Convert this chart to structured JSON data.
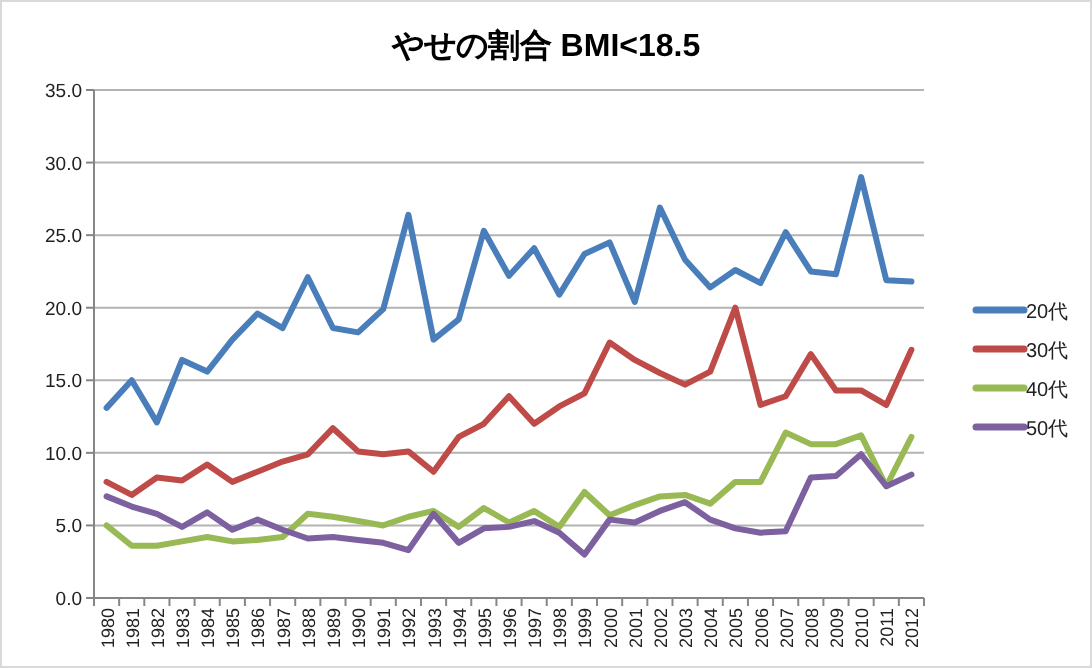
{
  "chart_data": {
    "type": "line",
    "title": "やせの割合 BMI<18.5",
    "categories": [
      "1980",
      "1981",
      "1982",
      "1983",
      "1984",
      "1985",
      "1986",
      "1987",
      "1988",
      "1989",
      "1990",
      "1991",
      "1992",
      "1993",
      "1994",
      "1995",
      "1996",
      "1997",
      "1998",
      "1999",
      "2000",
      "2001",
      "2002",
      "2003",
      "2004",
      "2005",
      "2006",
      "2007",
      "2008",
      "2009",
      "2010",
      "2011",
      "2012"
    ],
    "series": [
      {
        "name": "20代",
        "color": "#4a7ebb",
        "values": [
          13.1,
          15.0,
          12.1,
          16.4,
          15.6,
          17.8,
          19.6,
          18.6,
          22.1,
          18.6,
          18.3,
          19.9,
          26.4,
          17.8,
          19.2,
          25.3,
          22.2,
          24.1,
          20.9,
          23.7,
          24.5,
          20.4,
          26.9,
          23.3,
          21.4,
          22.6,
          21.7,
          25.2,
          22.5,
          22.3,
          29.0,
          21.9,
          21.8
        ]
      },
      {
        "name": "30代",
        "color": "#be4b48",
        "values": [
          8.0,
          7.1,
          8.3,
          8.1,
          9.2,
          8.0,
          8.7,
          9.4,
          9.9,
          11.7,
          10.1,
          9.9,
          10.1,
          8.7,
          11.1,
          12.0,
          13.9,
          12.0,
          13.2,
          14.1,
          17.6,
          16.4,
          15.5,
          14.7,
          15.6,
          20.0,
          13.3,
          13.9,
          16.8,
          14.3,
          14.3,
          13.3,
          17.1
        ]
      },
      {
        "name": "40代",
        "color": "#98b954",
        "values": [
          5.0,
          3.6,
          3.6,
          3.9,
          4.2,
          3.9,
          4.0,
          4.2,
          5.8,
          5.6,
          5.3,
          5.0,
          5.6,
          6.0,
          4.9,
          6.2,
          5.2,
          6.0,
          4.9,
          7.3,
          5.7,
          6.4,
          7.0,
          7.1,
          6.5,
          8.0,
          8.0,
          11.4,
          10.6,
          10.6,
          11.2,
          7.7,
          11.1
        ]
      },
      {
        "name": "50代",
        "color": "#7d60a0",
        "values": [
          7.0,
          6.3,
          5.8,
          4.9,
          5.9,
          4.7,
          5.4,
          4.7,
          4.1,
          4.2,
          4.0,
          3.8,
          3.3,
          5.8,
          3.8,
          4.8,
          4.9,
          5.3,
          4.5,
          3.0,
          5.4,
          5.2,
          6.0,
          6.6,
          5.4,
          4.8,
          4.5,
          4.6,
          8.3,
          8.4,
          9.9,
          7.7,
          8.5
        ]
      }
    ],
    "ylim": [
      0,
      35
    ],
    "yticks": [
      {
        "value": 0,
        "label": "0.0"
      },
      {
        "value": 5,
        "label": "5.0"
      },
      {
        "value": 10,
        "label": "10.0"
      },
      {
        "value": 15,
        "label": "15.0"
      },
      {
        "value": 20,
        "label": "20.0"
      },
      {
        "value": 25,
        "label": "25.0"
      },
      {
        "value": 30,
        "label": "30.0"
      },
      {
        "value": 35,
        "label": "35.0"
      }
    ],
    "grid": "y",
    "legend": "right",
    "marker": "none",
    "line_style": "solid"
  }
}
